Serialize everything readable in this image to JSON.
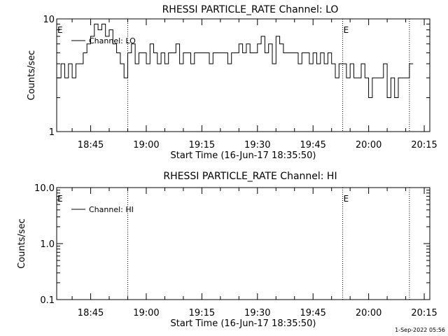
{
  "footer": {
    "date": "1-Sep-2022 05:56"
  },
  "chart_data": [
    {
      "type": "line",
      "title": "RHESSI PARTICLE_RATE Channel: LO",
      "xlabel": "Start Time (16-Jun-17 18:35:50)",
      "ylabel": "Counts/sec",
      "y_scale": "log",
      "ylim": [
        1,
        10
      ],
      "yticks": [
        {
          "v": 1,
          "label": "1"
        },
        {
          "v": 10,
          "label": "10"
        }
      ],
      "xlim": [
        "18:35:50",
        "20:16:30"
      ],
      "xticks": [
        "18:45",
        "19:00",
        "19:15",
        "19:30",
        "19:45",
        "20:00",
        "20:15"
      ],
      "legend": {
        "label": "Channel: LO",
        "position": "top-left"
      },
      "annotations": [
        {
          "time": "18:35:50",
          "label": "E"
        },
        {
          "time": "19:53:00",
          "label": "E"
        }
      ],
      "vlines": [
        "18:55:00",
        "19:53:00",
        "20:11:00"
      ],
      "series": [
        {
          "name": "Channel: LO",
          "x": [
            "18:36",
            "18:37",
            "18:38",
            "18:39",
            "18:40",
            "18:41",
            "18:42",
            "18:43",
            "18:44",
            "18:45",
            "18:46",
            "18:47",
            "18:48",
            "18:49",
            "18:50",
            "18:51",
            "18:52",
            "18:53",
            "18:54",
            "18:55",
            "18:56",
            "18:57",
            "18:58",
            "18:59",
            "19:00",
            "19:01",
            "19:02",
            "19:03",
            "19:04",
            "19:05",
            "19:06",
            "19:07",
            "19:08",
            "19:09",
            "19:10",
            "19:11",
            "19:12",
            "19:13",
            "19:14",
            "19:15",
            "19:16",
            "19:17",
            "19:18",
            "19:19",
            "19:20",
            "19:21",
            "19:22",
            "19:23",
            "19:24",
            "19:25",
            "19:26",
            "19:27",
            "19:28",
            "19:29",
            "19:30",
            "19:31",
            "19:32",
            "19:33",
            "19:34",
            "19:35",
            "19:36",
            "19:37",
            "19:38",
            "19:39",
            "19:40",
            "19:41",
            "19:42",
            "19:43",
            "19:44",
            "19:45",
            "19:46",
            "19:47",
            "19:48",
            "19:49",
            "19:50",
            "19:51",
            "19:52",
            "19:53",
            "19:54",
            "19:55",
            "19:56",
            "19:57",
            "19:58",
            "19:59",
            "20:00",
            "20:01",
            "20:02",
            "20:03",
            "20:04",
            "20:05",
            "20:06",
            "20:07",
            "20:08",
            "20:09",
            "20:10",
            "20:11"
          ],
          "values": [
            3,
            4,
            3,
            4,
            3,
            4,
            4,
            5,
            6,
            7,
            9,
            8,
            9,
            7,
            8,
            6,
            5,
            4,
            3,
            5,
            6,
            4,
            5,
            5,
            4,
            6,
            5,
            4,
            5,
            4,
            5,
            5,
            6,
            4,
            5,
            5,
            4,
            5,
            5,
            5,
            5,
            4,
            5,
            5,
            5,
            5,
            4,
            5,
            5,
            6,
            5,
            6,
            5,
            5,
            6,
            7,
            5,
            6,
            4,
            7,
            6,
            5,
            5,
            5,
            5,
            4,
            5,
            5,
            4,
            5,
            4,
            5,
            4,
            5,
            4,
            3,
            4,
            4,
            3,
            4,
            3,
            3,
            4,
            3,
            2,
            3,
            3,
            3,
            4,
            2,
            3,
            2,
            3,
            3,
            3,
            4
          ]
        }
      ]
    },
    {
      "type": "line",
      "title": "RHESSI PARTICLE_RATE Channel: HI",
      "xlabel": "Start Time (16-Jun-17 18:35:50)",
      "ylabel": "Counts/sec",
      "y_scale": "log",
      "ylim": [
        0.1,
        10
      ],
      "yticks": [
        {
          "v": 0.1,
          "label": "0.1"
        },
        {
          "v": 1,
          "label": "1.0"
        },
        {
          "v": 10,
          "label": "10.0"
        }
      ],
      "xlim": [
        "18:35:50",
        "20:16:30"
      ],
      "xticks": [
        "18:45",
        "19:00",
        "19:15",
        "19:30",
        "19:45",
        "20:00",
        "20:15"
      ],
      "legend": {
        "label": "Channel: HI",
        "position": "top-left"
      },
      "annotations": [
        {
          "time": "18:35:50",
          "label": "E"
        },
        {
          "time": "19:53:00",
          "label": "E"
        }
      ],
      "vlines": [
        "18:55:00",
        "19:53:00",
        "20:11:00"
      ],
      "series": [
        {
          "name": "Channel: HI",
          "x": [],
          "values": []
        }
      ]
    }
  ]
}
